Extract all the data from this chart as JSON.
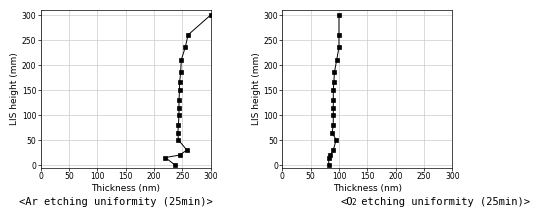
{
  "plot1": {
    "title": "<Ar etching uniformity (25min)>",
    "xlabel": "Thickness (nm)",
    "ylabel": "LIS height (mm)",
    "xlim": [
      0,
      300
    ],
    "ylim": [
      -5,
      310
    ],
    "xticks": [
      0,
      50,
      100,
      150,
      200,
      250,
      300
    ],
    "yticks": [
      0,
      50,
      100,
      150,
      200,
      250,
      300
    ],
    "data_x": [
      237,
      220,
      245,
      258,
      243,
      242,
      243,
      244,
      244,
      244,
      245,
      245,
      247,
      248,
      255,
      260,
      300
    ],
    "data_y": [
      0,
      15,
      20,
      30,
      50,
      65,
      80,
      100,
      115,
      130,
      150,
      165,
      185,
      210,
      235,
      260,
      300
    ]
  },
  "plot2": {
    "title": "<O₂ etching uniformity (25min)>",
    "xlabel": "Thickness (nm)",
    "ylabel": "LIS height (mm)",
    "xlim": [
      0,
      300
    ],
    "ylim": [
      -5,
      310
    ],
    "xticks": [
      0,
      50,
      100,
      150,
      200,
      250,
      300
    ],
    "yticks": [
      0,
      50,
      100,
      150,
      200,
      250,
      300
    ],
    "data_x": [
      82,
      82,
      85,
      90,
      95,
      88,
      90,
      90,
      90,
      90,
      90,
      91,
      92,
      96,
      100,
      100,
      100
    ],
    "data_y": [
      0,
      15,
      20,
      30,
      50,
      65,
      80,
      100,
      115,
      130,
      150,
      165,
      185,
      210,
      235,
      260,
      300
    ]
  },
  "line_color": "#000000",
  "marker": "s",
  "markersize": 3,
  "linewidth": 0.7,
  "grid_color": "#cccccc",
  "tick_fontsize": 5.5,
  "label_fontsize": 6.5,
  "title_fontsize": 7.5
}
